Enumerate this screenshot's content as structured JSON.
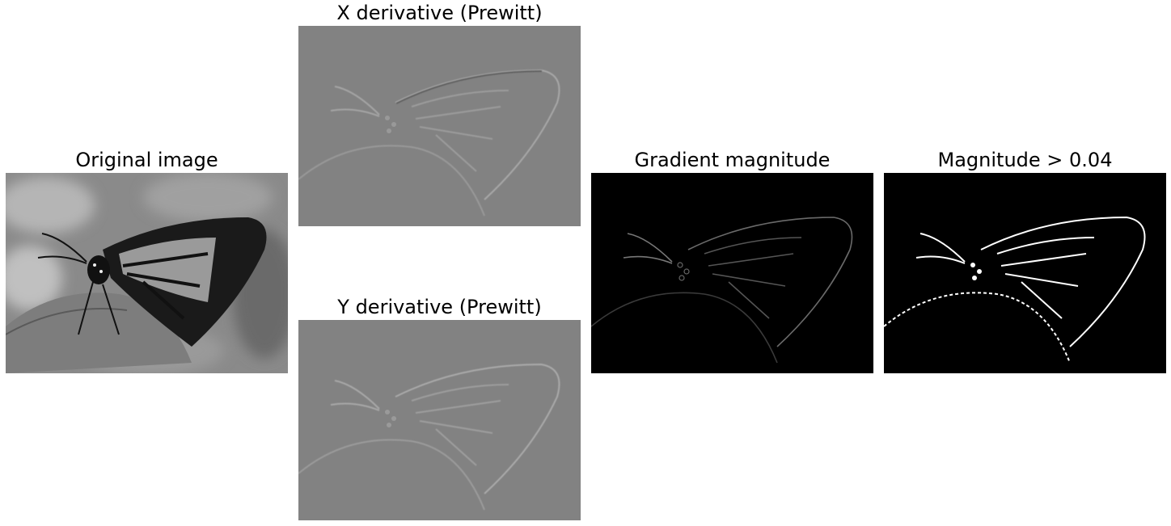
{
  "panels": {
    "original": {
      "title": "Original image"
    },
    "x_derivative": {
      "title": "X derivative (Prewitt)"
    },
    "y_derivative": {
      "title": "Y derivative (Prewitt)"
    },
    "gradient_magnitude": {
      "title": "Gradient magnitude"
    },
    "threshold": {
      "title": "Magnitude > 0.04"
    }
  }
}
